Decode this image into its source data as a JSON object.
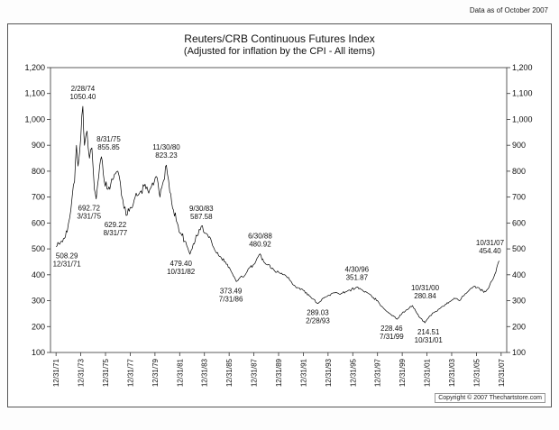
{
  "header": {
    "data_as_of": "Data as of October 2007"
  },
  "footer": {
    "copyright": "Copyright © 2007 Thechartstore.com"
  },
  "chart_data": {
    "type": "line",
    "title": "Reuters/CRB Continuous Futures Index",
    "subtitle": "(Adjusted for inflation by the CPI - All items)",
    "line_color": "#000000",
    "ylim": [
      100,
      1200
    ],
    "xlim": [
      1971.55,
      2008.45
    ],
    "grid": false,
    "y_tick_labels": [
      "1,200",
      "1,100",
      "1,000",
      "900",
      "800",
      "700",
      "600",
      "500",
      "400",
      "300",
      "200",
      "100"
    ],
    "x_tick_labels": [
      "12/31/71",
      "12/31/73",
      "12/31/75",
      "12/31/77",
      "12/31/79",
      "12/31/81",
      "12/31/83",
      "12/31/85",
      "12/31/87",
      "12/31/89",
      "12/31/91",
      "12/31/93",
      "12/31/95",
      "12/31/97",
      "12/31/99",
      "12/31/01",
      "12/31/03",
      "12/31/05",
      "12/31/07"
    ],
    "x_tick_start_year": 1972,
    "x_tick_step": 2,
    "series": [
      {
        "name": "CRB Continuous Futures Index (CPI adjusted)",
        "anchors": [
          [
            1972.0,
            508.29
          ],
          [
            1972.3,
            518
          ],
          [
            1972.6,
            540
          ],
          [
            1972.9,
            565
          ],
          [
            1973.1,
            620
          ],
          [
            1973.3,
            700
          ],
          [
            1973.5,
            760
          ],
          [
            1973.65,
            900
          ],
          [
            1973.78,
            820
          ],
          [
            1973.9,
            870
          ],
          [
            1974.0,
            930
          ],
          [
            1974.17,
            1050.4
          ],
          [
            1974.3,
            900
          ],
          [
            1974.5,
            955
          ],
          [
            1974.7,
            850
          ],
          [
            1974.9,
            890
          ],
          [
            1975.1,
            730
          ],
          [
            1975.25,
            692.72
          ],
          [
            1975.45,
            780
          ],
          [
            1975.67,
            855.85
          ],
          [
            1975.9,
            760
          ],
          [
            1976.2,
            730
          ],
          [
            1976.5,
            770
          ],
          [
            1976.8,
            790
          ],
          [
            1977.0,
            800
          ],
          [
            1977.2,
            755
          ],
          [
            1977.4,
            690
          ],
          [
            1977.67,
            629.22
          ],
          [
            1978.0,
            660
          ],
          [
            1978.4,
            700
          ],
          [
            1978.8,
            720
          ],
          [
            1979.2,
            750
          ],
          [
            1979.5,
            715
          ],
          [
            1979.8,
            755
          ],
          [
            1980.1,
            780
          ],
          [
            1980.4,
            700
          ],
          [
            1980.7,
            765
          ],
          [
            1980.92,
            823.23
          ],
          [
            1981.2,
            720
          ],
          [
            1981.5,
            650
          ],
          [
            1981.8,
            600
          ],
          [
            1982.1,
            560
          ],
          [
            1982.4,
            530
          ],
          [
            1982.83,
            479.4
          ],
          [
            1983.1,
            520
          ],
          [
            1983.4,
            550
          ],
          [
            1983.75,
            587.58
          ],
          [
            1984.1,
            560
          ],
          [
            1984.5,
            540
          ],
          [
            1984.9,
            490
          ],
          [
            1985.3,
            470
          ],
          [
            1985.7,
            450
          ],
          [
            1986.1,
            420
          ],
          [
            1986.58,
            373.49
          ],
          [
            1986.9,
            390
          ],
          [
            1987.3,
            400
          ],
          [
            1987.7,
            430
          ],
          [
            1988.0,
            440
          ],
          [
            1988.5,
            480.92
          ],
          [
            1988.8,
            450
          ],
          [
            1989.2,
            440
          ],
          [
            1989.6,
            420
          ],
          [
            1990.0,
            410
          ],
          [
            1990.4,
            400
          ],
          [
            1990.8,
            390
          ],
          [
            1991.2,
            360
          ],
          [
            1991.6,
            350
          ],
          [
            1992.0,
            340
          ],
          [
            1992.5,
            318
          ],
          [
            1993.17,
            289.03
          ],
          [
            1993.6,
            310
          ],
          [
            1994.0,
            320
          ],
          [
            1994.5,
            330
          ],
          [
            1995.0,
            325
          ],
          [
            1995.5,
            335
          ],
          [
            1996.33,
            351.87
          ],
          [
            1996.8,
            340
          ],
          [
            1997.2,
            330
          ],
          [
            1997.6,
            312
          ],
          [
            1998.0,
            300
          ],
          [
            1998.5,
            270
          ],
          [
            1999.0,
            250
          ],
          [
            1999.58,
            228.46
          ],
          [
            2000.0,
            252
          ],
          [
            2000.4,
            265
          ],
          [
            2000.83,
            280.84
          ],
          [
            2001.2,
            250
          ],
          [
            2001.5,
            232
          ],
          [
            2001.83,
            214.51
          ],
          [
            2002.2,
            240
          ],
          [
            2002.6,
            255
          ],
          [
            2003.0,
            268
          ],
          [
            2003.4,
            280
          ],
          [
            2003.8,
            295
          ],
          [
            2004.2,
            310
          ],
          [
            2004.6,
            300
          ],
          [
            2005.0,
            320
          ],
          [
            2005.4,
            340
          ],
          [
            2005.8,
            355
          ],
          [
            2006.2,
            350
          ],
          [
            2006.6,
            332
          ],
          [
            2007.0,
            350
          ],
          [
            2007.4,
            390
          ],
          [
            2007.83,
            454.4
          ]
        ]
      }
    ],
    "annotations": [
      {
        "lines": [
          "508.29",
          "12/31/71"
        ],
        "x": 1972.0,
        "y": 508.29,
        "pos": "below",
        "dx": 12
      },
      {
        "lines": [
          "2/28/74",
          "1050.40"
        ],
        "x": 1974.17,
        "y": 1050.4,
        "pos": "above",
        "dx": 0
      },
      {
        "lines": [
          "8/31/75",
          "855.85"
        ],
        "x": 1975.67,
        "y": 855.85,
        "pos": "above",
        "dx": 8
      },
      {
        "lines": [
          "692.72",
          "3/31/75"
        ],
        "x": 1975.25,
        "y": 692.72,
        "pos": "below",
        "dx": -8
      },
      {
        "lines": [
          "629.22",
          "8/31/77"
        ],
        "x": 1977.67,
        "y": 629.22,
        "pos": "below",
        "dx": -12
      },
      {
        "lines": [
          "11/30/80",
          "823.23"
        ],
        "x": 1980.92,
        "y": 823.23,
        "pos": "above",
        "dx": 0
      },
      {
        "lines": [
          "9/30/83",
          "587.58"
        ],
        "x": 1983.75,
        "y": 587.58,
        "pos": "above",
        "dx": 0
      },
      {
        "lines": [
          "479.40",
          "10/31/82"
        ],
        "x": 1982.83,
        "y": 479.4,
        "pos": "below",
        "dx": -10
      },
      {
        "lines": [
          "6/30/88",
          "480.92"
        ],
        "x": 1988.5,
        "y": 480.92,
        "pos": "above",
        "dx": 0
      },
      {
        "lines": [
          "373.49",
          "7/31/86"
        ],
        "x": 1986.58,
        "y": 373.49,
        "pos": "below",
        "dx": -6
      },
      {
        "lines": [
          "289.03",
          "2/28/93"
        ],
        "x": 1993.17,
        "y": 289.03,
        "pos": "below",
        "dx": 0
      },
      {
        "lines": [
          "4/30/96",
          "351.87"
        ],
        "x": 1996.33,
        "y": 351.87,
        "pos": "above",
        "dx": 0
      },
      {
        "lines": [
          "228.46",
          "7/31/99"
        ],
        "x": 1999.58,
        "y": 228.46,
        "pos": "below",
        "dx": -6
      },
      {
        "lines": [
          "10/31/00",
          "280.84"
        ],
        "x": 2000.83,
        "y": 280.84,
        "pos": "above",
        "dx": 14
      },
      {
        "lines": [
          "214.51",
          "10/31/01"
        ],
        "x": 2001.83,
        "y": 214.51,
        "pos": "below",
        "dx": 4
      },
      {
        "lines": [
          "10/31/07",
          "454.40"
        ],
        "x": 2007.83,
        "y": 454.4,
        "pos": "above",
        "dx": -10
      }
    ]
  }
}
